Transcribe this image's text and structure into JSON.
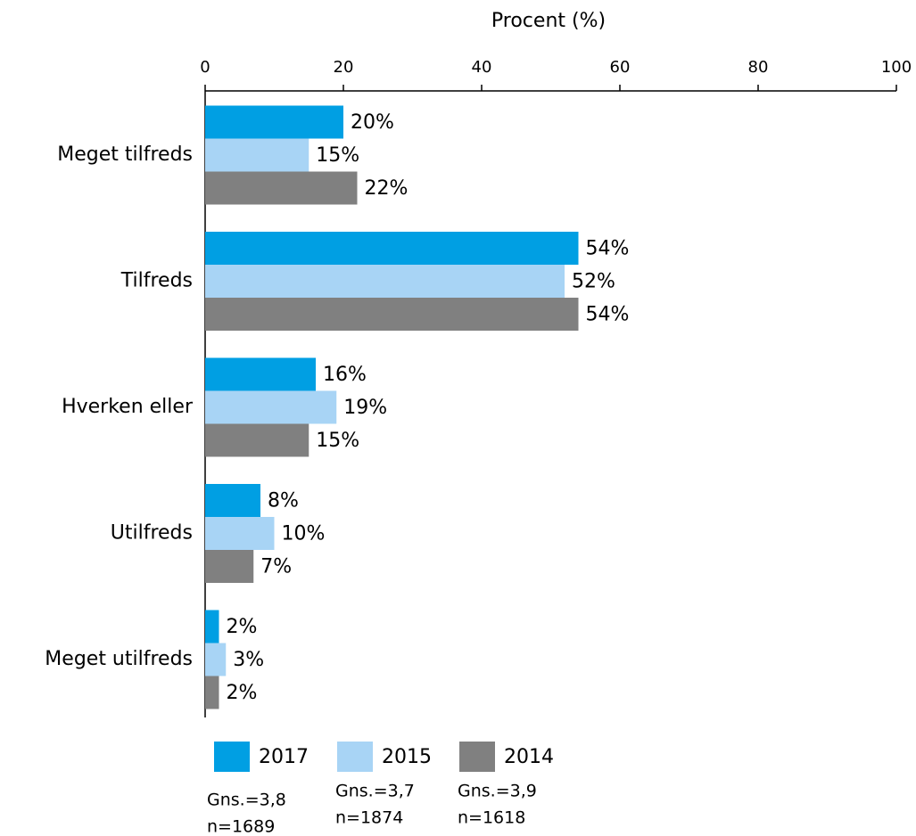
{
  "chart_data": {
    "type": "bar",
    "orientation": "horizontal",
    "xlabel": "Procent (%)",
    "categories": [
      "Meget tilfreds",
      "Tilfreds",
      "Hverken eller",
      "Utilfreds",
      "Meget utilfreds"
    ],
    "series": [
      {
        "name": "2017",
        "color": "#009fe3",
        "values": [
          20,
          54,
          16,
          8,
          2
        ],
        "value_labels": [
          "20%",
          "54%",
          "16%",
          "8%",
          "2%"
        ]
      },
      {
        "name": "2015",
        "color": "#a8d4f5",
        "values": [
          15,
          52,
          19,
          10,
          3
        ],
        "value_labels": [
          "15%",
          "52%",
          "19%",
          "10%",
          "3%"
        ]
      },
      {
        "name": "2014",
        "color": "#808080",
        "values": [
          22,
          54,
          15,
          7,
          2
        ],
        "value_labels": [
          "22%",
          "54%",
          "15%",
          "7%",
          "2%"
        ]
      }
    ],
    "xlim": [
      0,
      100
    ],
    "xticks": [
      0,
      20,
      40,
      60,
      80,
      100
    ],
    "notes": [
      [
        "Gns.=3,8",
        "n=1689"
      ],
      [
        "Gns.=3,7",
        "n=1874"
      ],
      [
        "Gns.=3,9",
        "n=1618"
      ]
    ]
  }
}
